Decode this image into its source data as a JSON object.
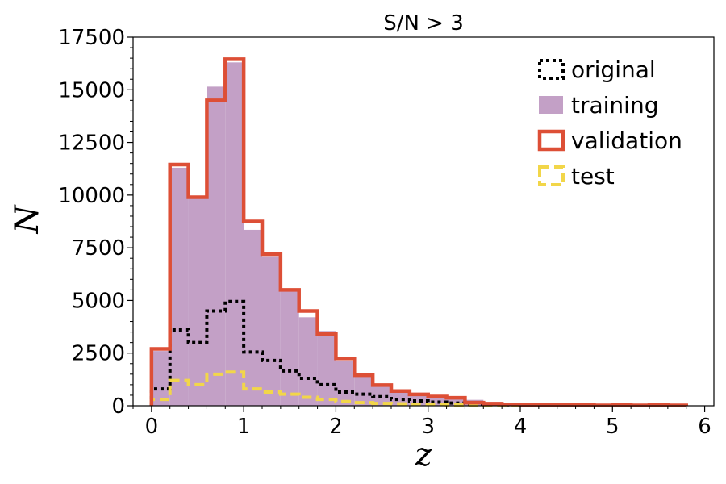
{
  "chart_data": {
    "type": "histogram",
    "title": "S/N > 3",
    "xlabel": "z",
    "ylabel": "N",
    "xlim": [
      -0.2,
      6.1
    ],
    "ylim": [
      0,
      17500
    ],
    "xticks": [
      0,
      1,
      2,
      3,
      4,
      5,
      6
    ],
    "yticks": [
      0,
      2500,
      5000,
      7500,
      10000,
      12500,
      15000,
      17500
    ],
    "legend_position": "top-right",
    "bin_edges": [
      0,
      0.2,
      0.4,
      0.6,
      0.8,
      1.0,
      1.2,
      1.4,
      1.6,
      1.8,
      2.0,
      2.2,
      2.4,
      2.6,
      2.8,
      3.0,
      3.2,
      3.4,
      3.6,
      3.8,
      4.0,
      4.2,
      4.4,
      4.6,
      4.8,
      5.0,
      5.2,
      5.4,
      5.6,
      5.8
    ],
    "series": [
      {
        "name": "original",
        "style": "step-dotted",
        "color": "#000000",
        "values": [
          800,
          3600,
          3000,
          4500,
          4950,
          2550,
          2150,
          1650,
          1300,
          1000,
          650,
          550,
          430,
          300,
          230,
          170,
          130,
          80,
          60,
          50,
          40,
          30,
          25,
          20,
          15,
          12,
          10,
          8,
          5
        ]
      },
      {
        "name": "training",
        "style": "filled",
        "color": "#c3a0c6",
        "values": [
          2600,
          11300,
          9850,
          15150,
          16300,
          8350,
          7100,
          5450,
          4200,
          3550,
          2150,
          1400,
          1050,
          700,
          520,
          420,
          320,
          280,
          180,
          120,
          100,
          90,
          80,
          70,
          60,
          50,
          40,
          30,
          20
        ]
      },
      {
        "name": "validation",
        "style": "step-solid",
        "color": "#dd4f36",
        "values": [
          2700,
          11450,
          9900,
          14500,
          16450,
          8750,
          7200,
          5500,
          4500,
          3400,
          2250,
          1450,
          980,
          700,
          540,
          440,
          380,
          150,
          100,
          60,
          50,
          40,
          40,
          30,
          20,
          30,
          20,
          40,
          20
        ]
      },
      {
        "name": "test",
        "style": "step-dashed",
        "color": "#f2d649",
        "values": [
          300,
          1200,
          1000,
          1500,
          1600,
          800,
          650,
          550,
          400,
          300,
          200,
          150,
          110,
          90,
          70,
          60,
          40,
          30,
          20,
          15,
          10,
          10,
          10,
          10,
          8,
          6,
          5,
          5,
          5
        ]
      }
    ]
  }
}
